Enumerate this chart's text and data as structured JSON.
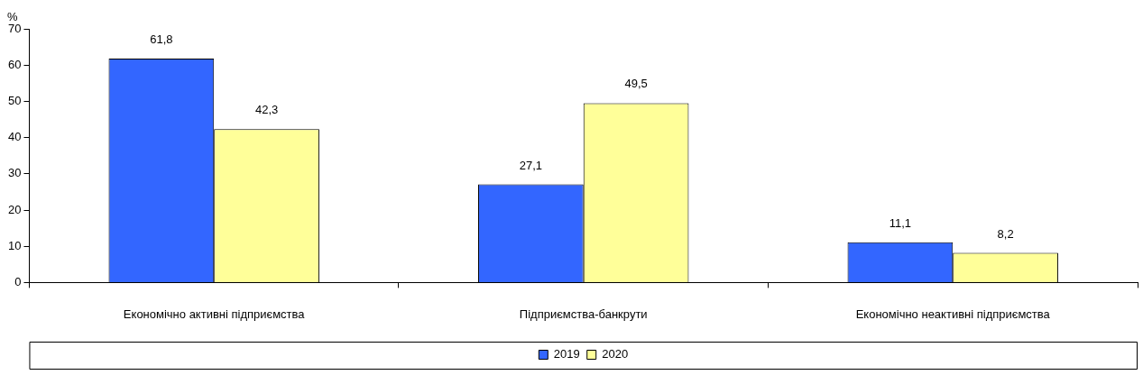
{
  "chart_data": {
    "type": "bar",
    "ylabel": "%",
    "categories": [
      "Економічно активні підприємства",
      "Підприємства-банкрути",
      "Економічно неактивні підприємства"
    ],
    "series": [
      {
        "name": "2019",
        "color": "#3366ff",
        "values": [
          61.8,
          27.1,
          11.1
        ],
        "value_labels": [
          "61,8",
          "27,1",
          "11,1"
        ]
      },
      {
        "name": "2020",
        "color": "#ffff99",
        "values": [
          42.3,
          49.5,
          8.2
        ],
        "value_labels": [
          "42,3",
          "49,5",
          "8,2"
        ]
      }
    ],
    "ylim": [
      0,
      70
    ],
    "yticks": [
      0,
      10,
      20,
      30,
      40,
      50,
      60,
      70
    ],
    "grid": false,
    "legend": "bottom"
  }
}
